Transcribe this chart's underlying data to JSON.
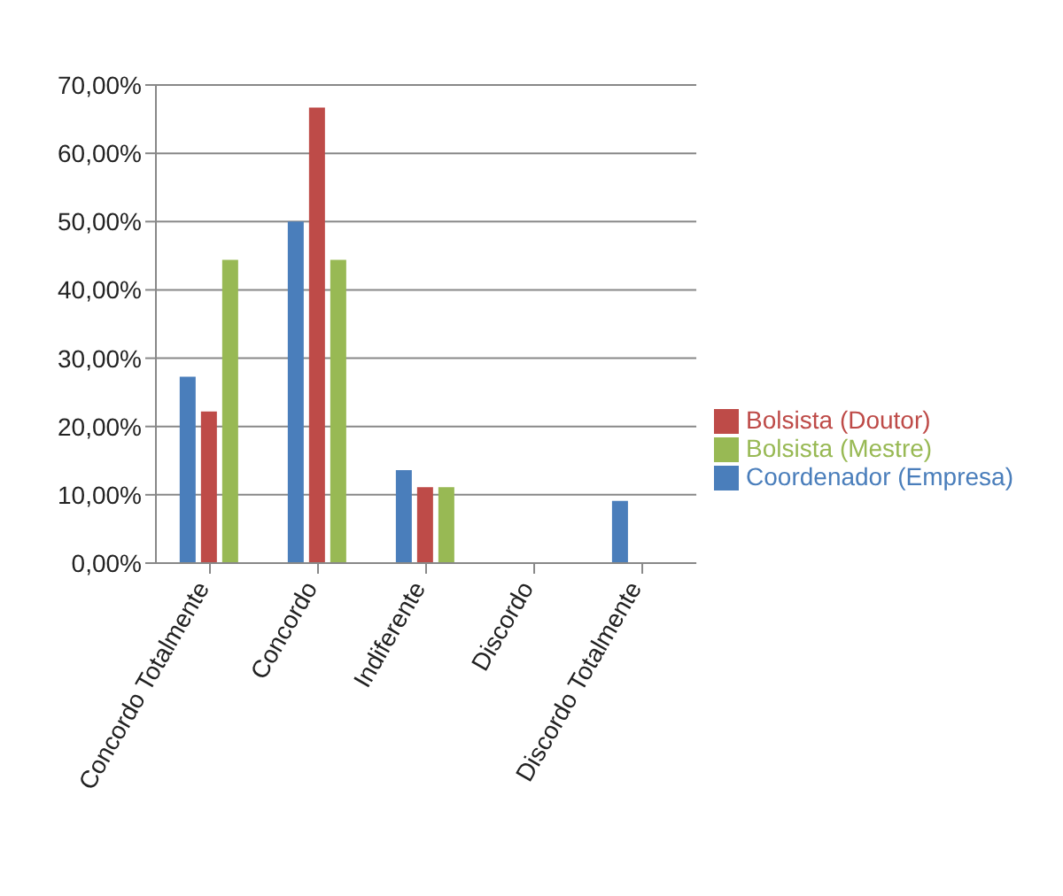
{
  "chart_data": {
    "type": "bar",
    "categories": [
      "Concordo Totalmente",
      "Concordo",
      "Indiferente",
      "Discordo",
      "Discordo Totalmente"
    ],
    "series": [
      {
        "name": "Coordenador (Empresa)",
        "color": "#4a7ebb",
        "values": [
          27.3,
          50,
          13.6,
          0,
          9.1
        ]
      },
      {
        "name": "Bolsista (Doutor)",
        "color": "#be4b48",
        "values": [
          22.2,
          66.7,
          11.1,
          0,
          0
        ]
      },
      {
        "name": "Bolsista (Mestre)",
        "color": "#98b954",
        "values": [
          44.4,
          44.4,
          11.1,
          0,
          0
        ]
      }
    ],
    "ylim": [
      0,
      70
    ],
    "yticks": [
      {
        "value": 0,
        "label": "0,00%"
      },
      {
        "value": 10,
        "label": "10,00%"
      },
      {
        "value": 20,
        "label": "20,00%"
      },
      {
        "value": 30,
        "label": "30,00%"
      },
      {
        "value": 40,
        "label": "40,00%"
      },
      {
        "value": 50,
        "label": "50,00%"
      },
      {
        "value": 60,
        "label": "60,00%"
      },
      {
        "value": 70,
        "label": "70,00%"
      }
    ],
    "grid": "y",
    "legend": "right"
  }
}
